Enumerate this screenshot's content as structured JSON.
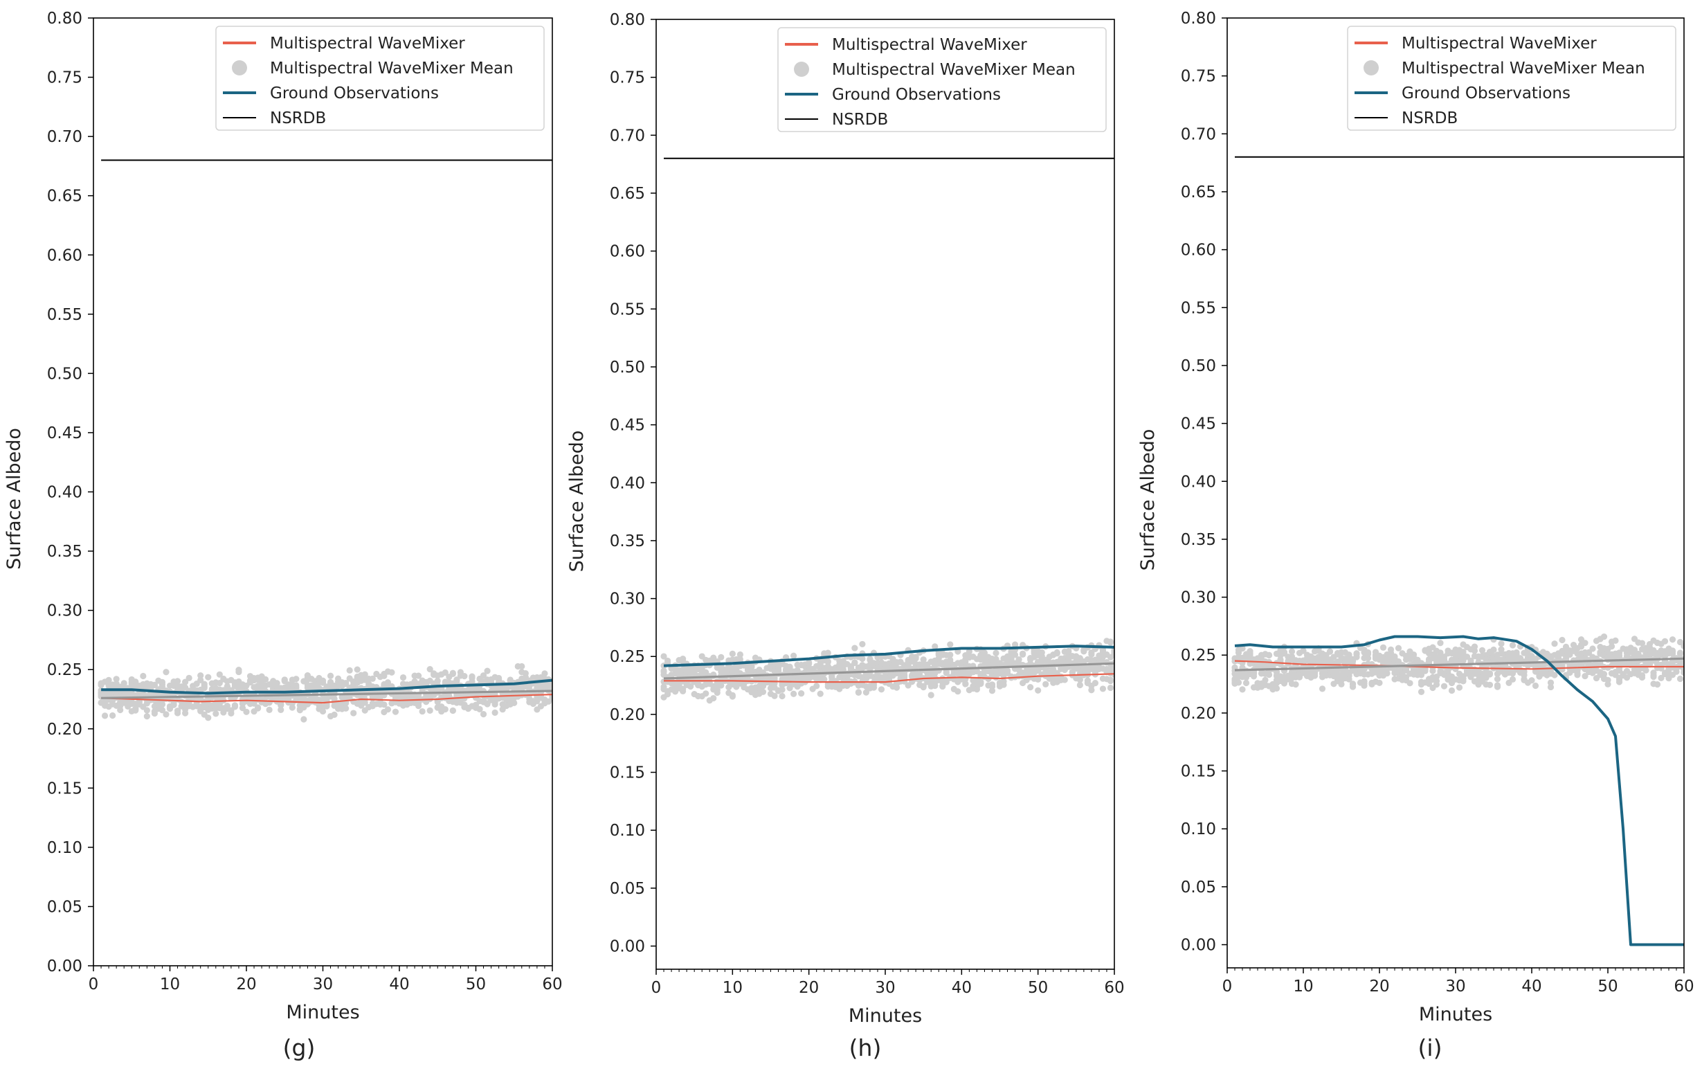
{
  "legend": {
    "model": "Multispectral WaveMixer",
    "model_mean": "Multispectral WaveMixer Mean",
    "ground": "Ground Observations",
    "nsrdb": "NSRDB"
  },
  "colors": {
    "model": "#e8604c",
    "model_mean_line": "#969696",
    "scatter": "#cfcfcf",
    "ground": "#1b6583",
    "nsrdb": "#000000"
  },
  "chart_data": [
    {
      "type": "line",
      "panel_label": "(g)",
      "xlabel": "Minutes",
      "ylabel": "Surface Albedo",
      "xlim": [
        0,
        60
      ],
      "ylim": [
        0.0,
        0.8
      ],
      "xticks": [
        "0",
        "10",
        "20",
        "30",
        "40",
        "50",
        "60"
      ],
      "yticks": [
        "0.00",
        "0.05",
        "0.10",
        "0.15",
        "0.20",
        "0.25",
        "0.30",
        "0.35",
        "0.40",
        "0.45",
        "0.50",
        "0.55",
        "0.60",
        "0.65",
        "0.70",
        "0.75",
        "0.80"
      ],
      "legend_position": "upper right",
      "scatter": {
        "name": "Multispectral WaveMixer Mean",
        "x_start": 1,
        "x_end": 60,
        "center": [
          0.227,
          0.229,
          0.231,
          0.233
        ],
        "spread": 0.03
      },
      "series": [
        {
          "name": "Multispectral WaveMixer",
          "x": [
            1,
            10,
            14,
            20,
            30,
            35,
            40,
            45,
            50,
            55,
            60
          ],
          "y": [
            0.226,
            0.224,
            0.223,
            0.224,
            0.222,
            0.225,
            0.224,
            0.225,
            0.227,
            0.228,
            0.229
          ]
        },
        {
          "name": "Multispectral WaveMixer Mean",
          "x": [
            1,
            60
          ],
          "y": [
            0.226,
            0.232
          ]
        },
        {
          "name": "Ground Observations",
          "x": [
            1,
            5,
            10,
            15,
            20,
            25,
            30,
            35,
            40,
            45,
            50,
            55,
            60
          ],
          "y": [
            0.233,
            0.233,
            0.231,
            0.23,
            0.231,
            0.231,
            0.232,
            0.233,
            0.234,
            0.236,
            0.237,
            0.238,
            0.241
          ]
        },
        {
          "name": "NSRDB",
          "x": [
            1,
            60
          ],
          "y": [
            0.68,
            0.68
          ]
        }
      ]
    },
    {
      "type": "line",
      "panel_label": "(h)",
      "xlabel": "Minutes",
      "ylabel": "Surface Albedo",
      "xlim": [
        0,
        60
      ],
      "ylim": [
        -0.02,
        0.8
      ],
      "xticks": [
        "0",
        "10",
        "20",
        "30",
        "40",
        "50",
        "60"
      ],
      "yticks": [
        "0.00",
        "0.05",
        "0.10",
        "0.15",
        "0.20",
        "0.25",
        "0.30",
        "0.35",
        "0.40",
        "0.45",
        "0.50",
        "0.55",
        "0.60",
        "0.65",
        "0.70",
        "0.75",
        "0.80"
      ],
      "legend_position": "upper right",
      "scatter": {
        "name": "Multispectral WaveMixer Mean",
        "x_start": 1,
        "x_end": 60,
        "center": [
          0.231,
          0.235,
          0.239,
          0.244
        ],
        "spread": 0.032
      },
      "series": [
        {
          "name": "Multispectral WaveMixer",
          "x": [
            1,
            10,
            20,
            30,
            35,
            40,
            45,
            50,
            55,
            60
          ],
          "y": [
            0.229,
            0.229,
            0.228,
            0.228,
            0.231,
            0.232,
            0.231,
            0.233,
            0.234,
            0.235
          ]
        },
        {
          "name": "Multispectral WaveMixer Mean",
          "x": [
            1,
            60
          ],
          "y": [
            0.231,
            0.244
          ]
        },
        {
          "name": "Ground Observations",
          "x": [
            1,
            10,
            20,
            25,
            30,
            35,
            40,
            45,
            50,
            55,
            60
          ],
          "y": [
            0.242,
            0.244,
            0.248,
            0.251,
            0.252,
            0.255,
            0.257,
            0.257,
            0.258,
            0.259,
            0.258
          ]
        },
        {
          "name": "NSRDB",
          "x": [
            1,
            60
          ],
          "y": [
            0.68,
            0.68
          ]
        }
      ]
    },
    {
      "type": "line",
      "panel_label": "(i)",
      "xlabel": "Minutes",
      "ylabel": "Surface Albedo",
      "xlim": [
        0,
        60
      ],
      "ylim": [
        -0.02,
        0.8
      ],
      "xticks": [
        "0",
        "10",
        "20",
        "30",
        "40",
        "50",
        "60"
      ],
      "yticks": [
        "0.00",
        "0.05",
        "0.10",
        "0.15",
        "0.20",
        "0.25",
        "0.30",
        "0.35",
        "0.40",
        "0.45",
        "0.50",
        "0.55",
        "0.60",
        "0.65",
        "0.70",
        "0.75",
        "0.80"
      ],
      "legend_position": "upper right",
      "scatter": {
        "name": "Multispectral WaveMixer Mean",
        "x_start": 1,
        "x_end": 60,
        "center": [
          0.238,
          0.24,
          0.243,
          0.246
        ],
        "spread": 0.032
      },
      "series": [
        {
          "name": "Multispectral WaveMixer",
          "x": [
            1,
            5,
            10,
            20,
            30,
            40,
            50,
            60
          ],
          "y": [
            0.245,
            0.244,
            0.242,
            0.241,
            0.239,
            0.238,
            0.24,
            0.24
          ]
        },
        {
          "name": "Multispectral WaveMixer Mean",
          "x": [
            1,
            60
          ],
          "y": [
            0.237,
            0.247
          ]
        },
        {
          "name": "Ground Observations",
          "x": [
            1,
            3,
            6,
            10,
            15,
            18,
            20,
            22,
            25,
            28,
            31,
            33,
            35,
            38,
            40,
            42,
            44,
            46,
            48,
            50,
            51,
            52,
            53,
            60
          ],
          "y": [
            0.258,
            0.259,
            0.257,
            0.257,
            0.257,
            0.259,
            0.263,
            0.266,
            0.266,
            0.265,
            0.266,
            0.264,
            0.265,
            0.262,
            0.255,
            0.245,
            0.232,
            0.22,
            0.21,
            0.195,
            0.18,
            0.1,
            0.0,
            0.0
          ]
        },
        {
          "name": "NSRDB",
          "x": [
            1,
            60
          ],
          "y": [
            0.68,
            0.68
          ]
        }
      ]
    }
  ]
}
